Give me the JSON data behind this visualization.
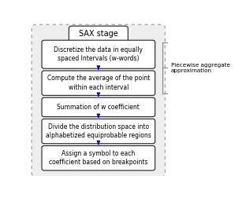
{
  "title": "SAX stage",
  "boxes": [
    "Discretize the data in equally\nspaced Intervals (w-words)",
    "Compute the average of the point\nwithin each interval",
    "Summation of w coefficient",
    "Divide the distribution space into\nalphabetized equiprobable regions",
    "Assign a symbol to each\ncoefficient based on breakpoints"
  ],
  "side_label": "Piecewise aggregate\napproximation",
  "box_facecolor": "#ffffff",
  "box_edgecolor": "#222222",
  "outer_border_color": "#aaaaaa",
  "arrow_color": "#0000cc",
  "title_bg": "#ffffff",
  "text_color": "#000000",
  "fig_bg": "#ffffff",
  "outer_facecolor": "#eeeeee"
}
